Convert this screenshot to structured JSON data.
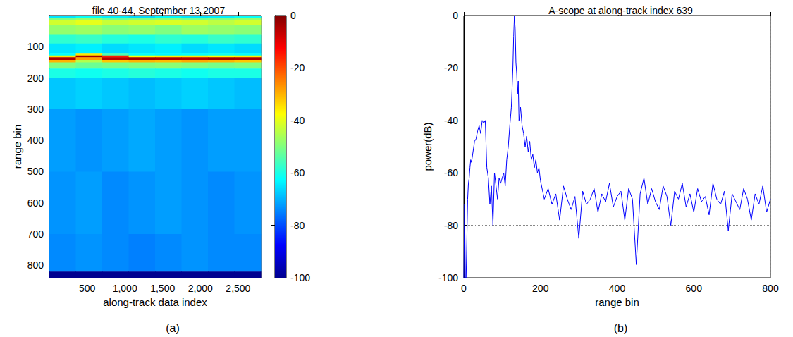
{
  "chart_data": [
    {
      "type": "heatmap",
      "title": "file 40-44, September 13,2007",
      "xlabel": "along-track data index",
      "ylabel": "range bin",
      "panel_label": "(a)",
      "xlim": [
        0,
        2800
      ],
      "xticks": [
        500,
        1000,
        1500,
        2000,
        2500
      ],
      "ylim": [
        0,
        840
      ],
      "yticks": [
        100,
        200,
        300,
        400,
        500,
        600,
        700,
        800
      ],
      "grid": false,
      "x_edges": [
        0,
        350,
        700,
        1050,
        1400,
        1750,
        2100,
        2450,
        2800
      ],
      "y_edges": [
        0,
        8,
        15,
        30,
        60,
        90,
        120,
        128,
        134,
        142,
        150,
        170,
        200,
        300,
        500,
        700,
        820,
        840
      ],
      "values": [
        [
          -65,
          -62,
          -64,
          -66,
          -63,
          -65,
          -64,
          -62
        ],
        [
          -50,
          -48,
          -52,
          -50,
          -49,
          -51,
          -50,
          -48
        ],
        [
          -42,
          -40,
          -43,
          -42,
          -41,
          -42,
          -44,
          -42
        ],
        [
          -48,
          -47,
          -49,
          -48,
          -50,
          -47,
          -48,
          -49
        ],
        [
          -58,
          -57,
          -59,
          -60,
          -58,
          -59,
          -57,
          -58
        ],
        [
          -65,
          -64,
          -66,
          -65,
          -64,
          -66,
          -65,
          -66
        ],
        [
          -62,
          -35,
          -55,
          -62,
          -63,
          -62,
          -61,
          -62
        ],
        [
          -35,
          -3,
          -15,
          -38,
          -36,
          -35,
          -37,
          -36
        ],
        [
          -4,
          -28,
          -6,
          -3,
          -4,
          -5,
          -3,
          -4
        ],
        [
          -30,
          -45,
          -32,
          -30,
          -31,
          -29,
          -30,
          -32
        ],
        [
          -50,
          -52,
          -51,
          -50,
          -49,
          -50,
          -51,
          -50
        ],
        [
          -60,
          -61,
          -60,
          -59,
          -60,
          -61,
          -60,
          -60
        ],
        [
          -68,
          -67,
          -68,
          -69,
          -68,
          -67,
          -68,
          -69
        ],
        [
          -72,
          -73,
          -72,
          -71,
          -72,
          -73,
          -72,
          -72
        ],
        [
          -73,
          -72,
          -74,
          -73,
          -72,
          -73,
          -74,
          -73
        ],
        [
          -74,
          -73,
          -74,
          -75,
          -74,
          -73,
          -74,
          -74
        ],
        [
          -100,
          -100,
          -100,
          -100,
          -100,
          -100,
          -100,
          -100
        ]
      ],
      "colorbar": {
        "lim": [
          -100,
          0
        ],
        "ticks": [
          -100,
          -80,
          -60,
          -40,
          -20,
          0
        ]
      }
    },
    {
      "type": "line",
      "title": "A-scope at along-track index 639",
      "xlabel": "range bin",
      "ylabel": "power(dB)",
      "panel_label": "(b)",
      "color": "#0000ff",
      "xlim": [
        0,
        800
      ],
      "xticks": [
        0,
        200,
        400,
        600,
        800
      ],
      "ylim": [
        -100,
        0
      ],
      "yticks": [
        -100,
        -80,
        -60,
        -40,
        -20,
        0
      ],
      "grid": true,
      "x": [
        0,
        2,
        4,
        6,
        8,
        10,
        12,
        14,
        16,
        18,
        20,
        24,
        28,
        32,
        36,
        40,
        44,
        48,
        52,
        56,
        60,
        64,
        68,
        72,
        76,
        80,
        84,
        88,
        92,
        96,
        100,
        104,
        108,
        112,
        116,
        120,
        124,
        128,
        130,
        132,
        134,
        136,
        138,
        140,
        142,
        144,
        148,
        152,
        156,
        160,
        164,
        168,
        172,
        176,
        180,
        184,
        188,
        192,
        196,
        200,
        210,
        220,
        230,
        240,
        250,
        260,
        270,
        280,
        290,
        300,
        310,
        320,
        330,
        340,
        350,
        360,
        370,
        380,
        390,
        400,
        410,
        420,
        430,
        440,
        450,
        460,
        470,
        480,
        490,
        500,
        510,
        520,
        530,
        540,
        550,
        560,
        570,
        580,
        590,
        600,
        610,
        620,
        630,
        640,
        650,
        660,
        670,
        680,
        690,
        700,
        710,
        720,
        730,
        740,
        750,
        760,
        770,
        780,
        790,
        800
      ],
      "values": [
        -100,
        -72,
        -100,
        -100,
        -85,
        -70,
        -64,
        -62,
        -58,
        -55,
        -56,
        -52,
        -48,
        -47,
        -44,
        -42,
        -45,
        -40,
        -41,
        -40,
        -58,
        -62,
        -72,
        -65,
        -80,
        -60,
        -65,
        -70,
        -62,
        -64,
        -62,
        -60,
        -65,
        -55,
        -50,
        -42,
        -35,
        -20,
        -8,
        0,
        -5,
        -18,
        -22,
        -30,
        -25,
        -40,
        -35,
        -42,
        -45,
        -50,
        -46,
        -52,
        -48,
        -55,
        -53,
        -58,
        -55,
        -60,
        -58,
        -63,
        -70,
        -66,
        -72,
        -68,
        -78,
        -65,
        -70,
        -74,
        -69,
        -85,
        -67,
        -72,
        -70,
        -66,
        -75,
        -68,
        -71,
        -64,
        -73,
        -69,
        -67,
        -78,
        -66,
        -70,
        -95,
        -68,
        -62,
        -72,
        -66,
        -71,
        -74,
        -65,
        -69,
        -80,
        -67,
        -70,
        -64,
        -73,
        -68,
        -75,
        -66,
        -71,
        -69,
        -76,
        -64,
        -70,
        -72,
        -67,
        -82,
        -68,
        -71,
        -74,
        -66,
        -70,
        -78,
        -68,
        -72,
        -65,
        -75,
        -70
      ]
    }
  ]
}
